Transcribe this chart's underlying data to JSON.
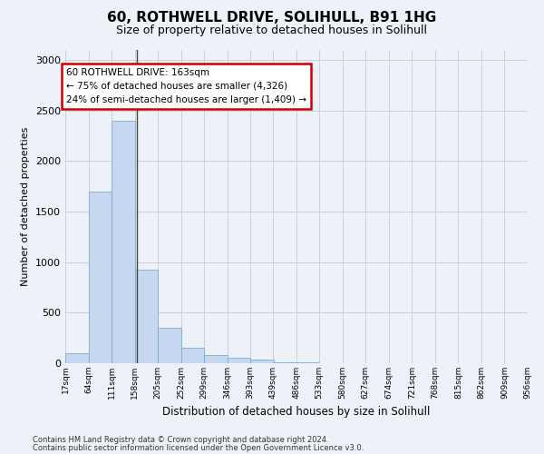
{
  "title": "60, ROTHWELL DRIVE, SOLIHULL, B91 1HG",
  "subtitle": "Size of property relative to detached houses in Solihull",
  "xlabel": "Distribution of detached houses by size in Solihull",
  "ylabel": "Number of detached properties",
  "footnote1": "Contains HM Land Registry data © Crown copyright and database right 2024.",
  "footnote2": "Contains public sector information licensed under the Open Government Licence v3.0.",
  "bin_edges": [
    17,
    64,
    111,
    158,
    205,
    252,
    299,
    346,
    393,
    439,
    486,
    533,
    580,
    627,
    674,
    721,
    768,
    815,
    862,
    909,
    956
  ],
  "bar_heights": [
    100,
    1700,
    2400,
    930,
    350,
    155,
    80,
    55,
    40,
    8,
    5,
    3,
    2,
    1,
    1,
    1,
    0,
    0,
    0,
    0
  ],
  "bar_color": "#c5d8ef",
  "bar_edge_color": "#7aadd4",
  "grid_color": "#c8d0dc",
  "background_color": "#eef2f8",
  "annotation_line1": "60 ROTHWELL DRIVE: 163sqm",
  "annotation_line2": "← 75% of detached houses are smaller (4,326)",
  "annotation_line3": "24% of semi-detached houses are larger (1,409) →",
  "annotation_box_color": "#ffffff",
  "annotation_box_edge": "#cc0000",
  "property_size": 163,
  "ylim": [
    0,
    3100
  ],
  "yticks": [
    0,
    500,
    1000,
    1500,
    2000,
    2500,
    3000
  ]
}
